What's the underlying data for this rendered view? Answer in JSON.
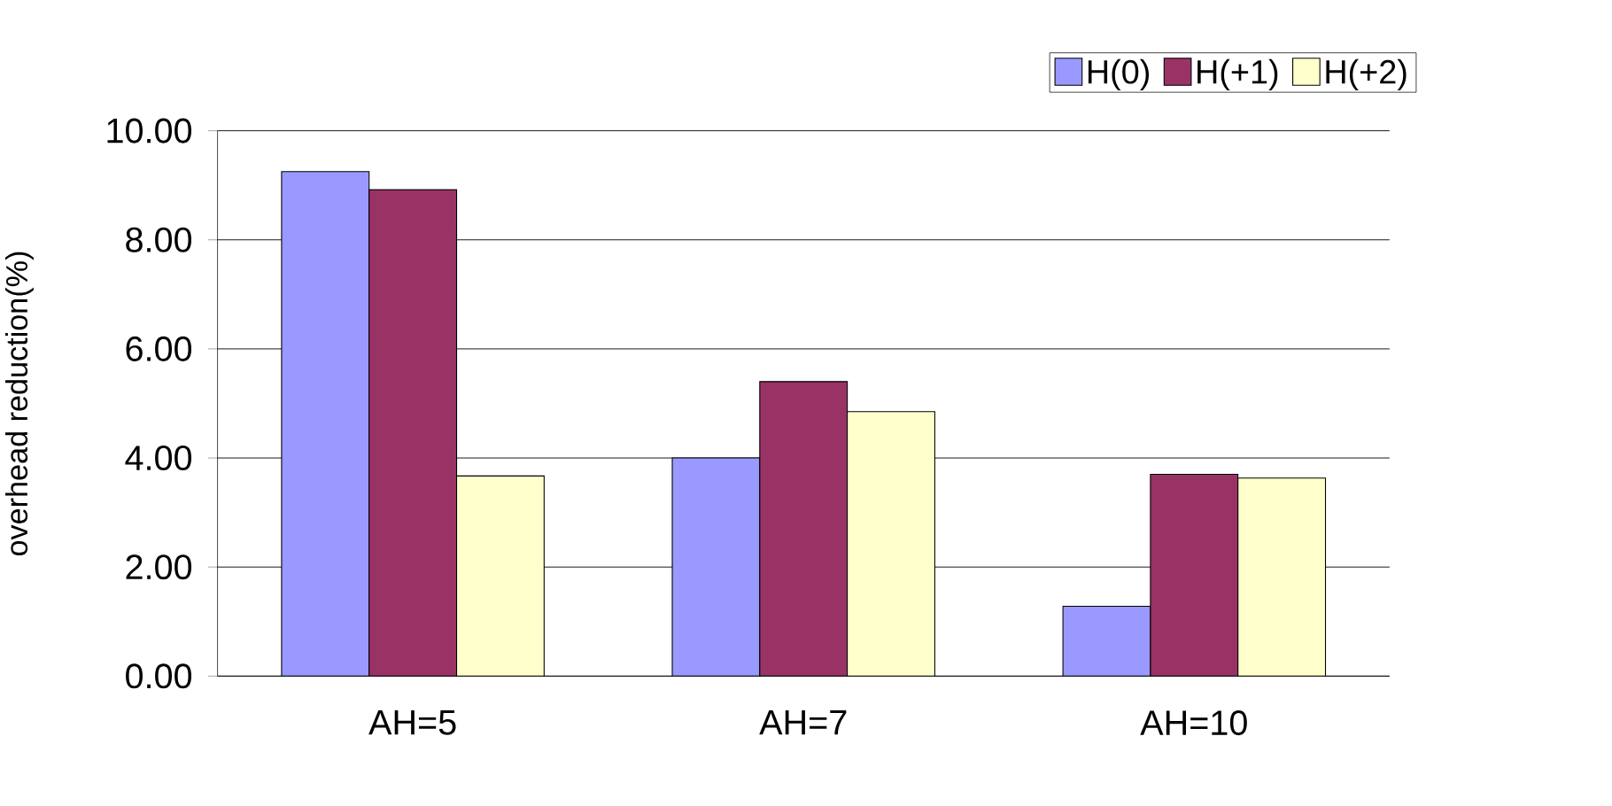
{
  "chart_data": {
    "type": "bar",
    "ylabel": "overhead reduction(%)",
    "categories": [
      "AH=5",
      "AH=7",
      "AH=10"
    ],
    "series": [
      {
        "name": "H(0)",
        "color": "#9999ff",
        "values": [
          9.25,
          4.0,
          1.28
        ]
      },
      {
        "name": "H(+1)",
        "color": "#993366",
        "values": [
          8.92,
          5.4,
          3.7
        ]
      },
      {
        "name": "H(+2)",
        "color": "#ffffcc",
        "values": [
          3.67,
          4.85,
          3.63
        ]
      }
    ],
    "ylim": [
      0,
      10
    ],
    "yticks": [
      {
        "value": 0,
        "label": "0.00"
      },
      {
        "value": 2,
        "label": "2.00"
      },
      {
        "value": 4,
        "label": "4.00"
      },
      {
        "value": 6,
        "label": "6.00"
      },
      {
        "value": 8,
        "label": "8.00"
      },
      {
        "value": 10,
        "label": "10.00"
      }
    ],
    "grid": "y",
    "legend": "top right"
  }
}
